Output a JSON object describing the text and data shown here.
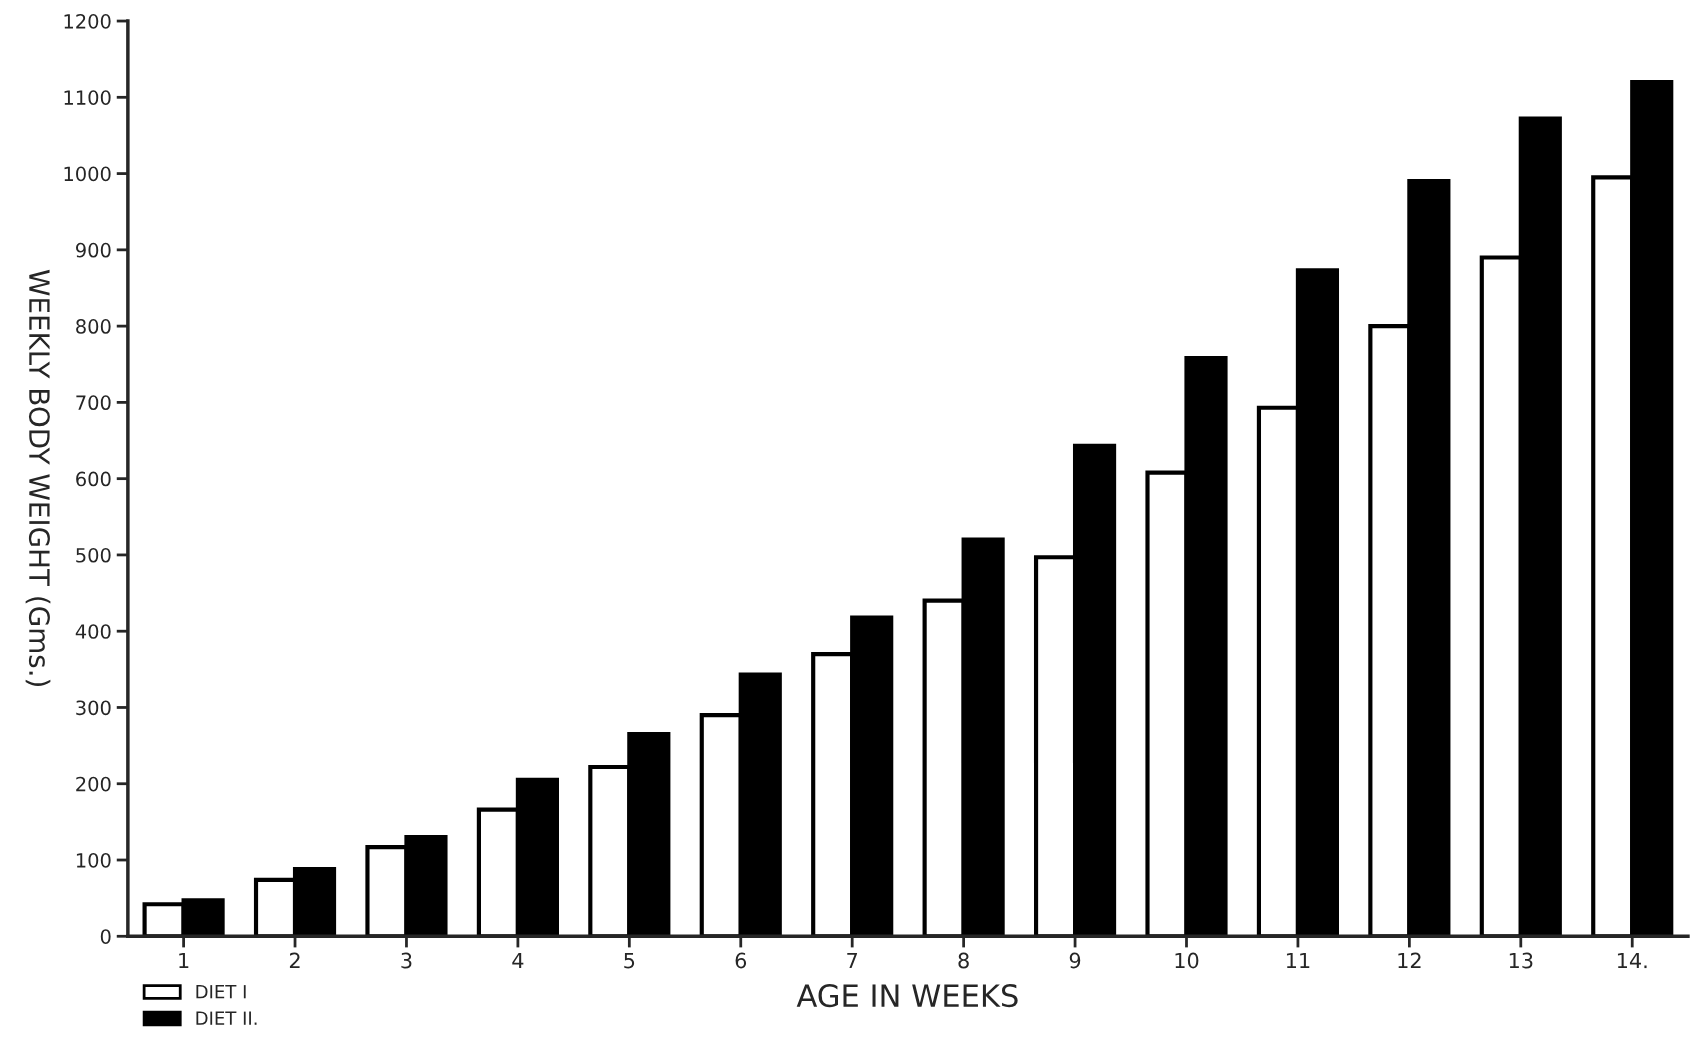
{
  "chart_data": {
    "type": "bar",
    "xlabel": "AGE IN WEEKS",
    "ylabel": "WEEKLY BODY WEIGHT (Gms.)",
    "categories": [
      "1",
      "2",
      "3",
      "4",
      "5",
      "6",
      "7",
      "8",
      "9",
      "10",
      "11",
      "12",
      "13",
      "14."
    ],
    "series": [
      {
        "name": "DIET I",
        "color": "#ffffff",
        "values": [
          42,
          74,
          117,
          166,
          222,
          290,
          370,
          440,
          497,
          608,
          693,
          800,
          890,
          995
        ]
      },
      {
        "name": "DIET II.",
        "color": "#000000",
        "values": [
          47,
          88,
          130,
          205,
          265,
          343,
          418,
          520,
          643,
          758,
          873,
          990,
          1072,
          1120
        ]
      }
    ],
    "ylim": [
      0,
      1200
    ],
    "yticks": [
      0,
      100,
      200,
      300,
      400,
      500,
      600,
      700,
      800,
      900,
      1000,
      1100,
      1200
    ],
    "grid": false,
    "legend": "bottom left"
  }
}
